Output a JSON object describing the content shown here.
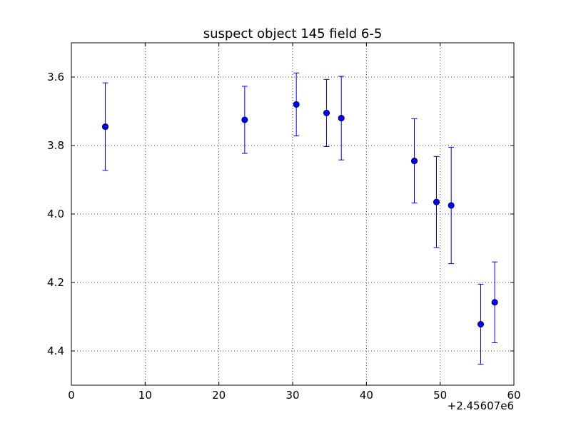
{
  "chart_data": {
    "type": "scatter",
    "title": "suspect object 145 field 6-5",
    "xlabel": "",
    "ylabel": "",
    "x_offset_label": "+2.45607e6",
    "xlim": [
      0,
      60
    ],
    "ylim": [
      4.5,
      3.5
    ],
    "y_inverted": true,
    "grid": true,
    "x_ticks": [
      0,
      10,
      20,
      30,
      40,
      50,
      60
    ],
    "x_tick_labels": [
      "0",
      "10",
      "20",
      "30",
      "40",
      "50",
      "60"
    ],
    "y_ticks": [
      3.6,
      3.8,
      4.0,
      4.2,
      4.4
    ],
    "y_tick_labels": [
      "3.6",
      "3.8",
      "4.0",
      "4.2",
      "4.4"
    ],
    "series": [
      {
        "color": "#0000ff",
        "marker": "circle",
        "errorbars": true,
        "points": [
          {
            "x": 4.6,
            "y": 3.745,
            "err_low": 3.617,
            "err_high": 3.873
          },
          {
            "x": 23.5,
            "y": 3.725,
            "err_low": 3.627,
            "err_high": 3.823
          },
          {
            "x": 30.5,
            "y": 3.68,
            "err_low": 3.588,
            "err_high": 3.772
          },
          {
            "x": 34.6,
            "y": 3.705,
            "err_low": 3.607,
            "err_high": 3.803
          },
          {
            "x": 36.6,
            "y": 3.72,
            "err_low": 3.598,
            "err_high": 3.842
          },
          {
            "x": 46.5,
            "y": 3.845,
            "err_low": 3.722,
            "err_high": 3.968
          },
          {
            "x": 49.5,
            "y": 3.965,
            "err_low": 3.832,
            "err_high": 4.098
          },
          {
            "x": 51.5,
            "y": 3.975,
            "err_low": 3.805,
            "err_high": 4.145
          },
          {
            "x": 55.5,
            "y": 4.322,
            "err_low": 4.205,
            "err_high": 4.439
          },
          {
            "x": 57.4,
            "y": 4.258,
            "err_low": 4.14,
            "err_high": 4.376
          }
        ]
      }
    ]
  }
}
